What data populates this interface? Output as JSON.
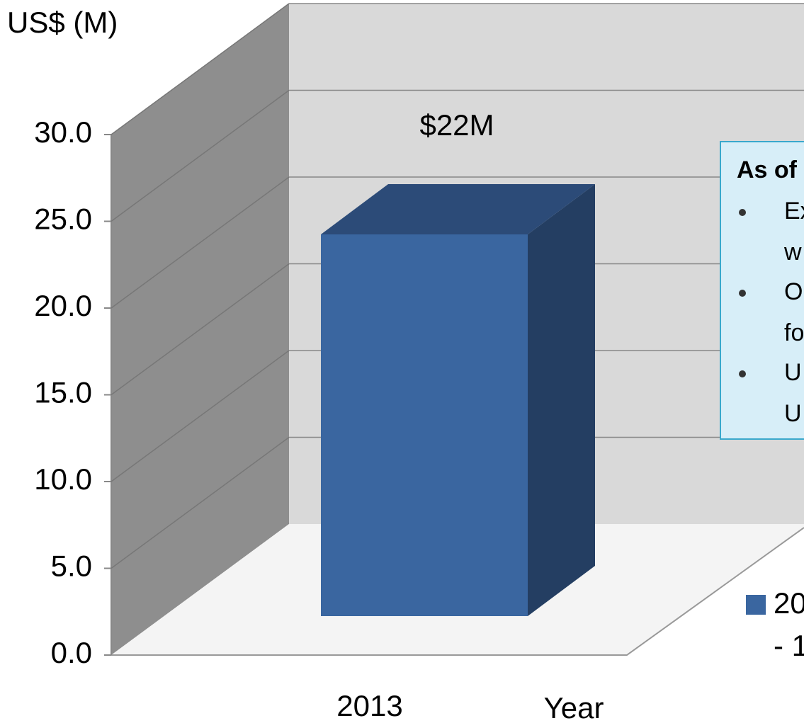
{
  "chart_data": {
    "type": "bar",
    "y_axis_label": "US$ (M)",
    "x_axis_label": "Year",
    "categories": [
      "2013"
    ],
    "series": [
      {
        "name": "20",
        "name_continued": "- 1",
        "color": "#3a66a0",
        "values": [
          22
        ],
        "value_labels": [
          "$22M"
        ]
      }
    ],
    "ylim": [
      0,
      30
    ],
    "yticks": [
      {
        "value": 0,
        "label": "0.0"
      },
      {
        "value": 5,
        "label": "5.0"
      },
      {
        "value": 10,
        "label": "10.0"
      },
      {
        "value": 15,
        "label": "15.0"
      },
      {
        "value": 20,
        "label": "20.0"
      },
      {
        "value": 25,
        "label": "25.0"
      },
      {
        "value": 30,
        "label": "30.0"
      }
    ],
    "grid": true,
    "annotation": {
      "heading": "As of",
      "bullets": [
        [
          "Ex",
          "w"
        ],
        [
          "O",
          "fo"
        ],
        [
          "U",
          "U"
        ]
      ]
    }
  }
}
